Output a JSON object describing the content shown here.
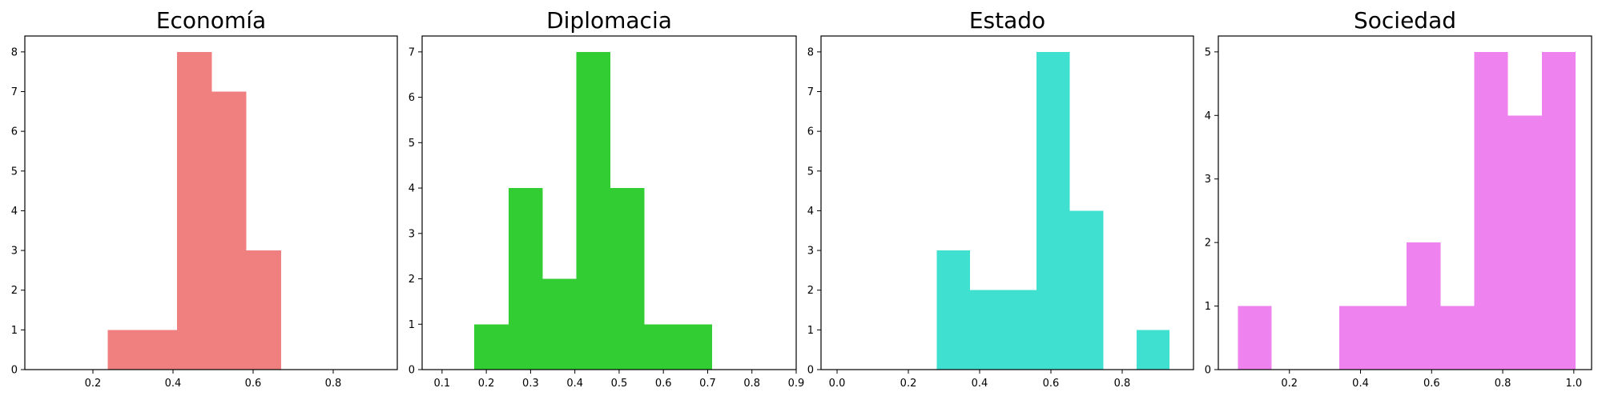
{
  "chart_data": [
    {
      "type": "bar",
      "title": "Economía",
      "xlabel": "",
      "ylabel": "",
      "color": "#f08080",
      "xlim": [
        0.03,
        0.96
      ],
      "ylim": [
        0,
        8.4
      ],
      "xticks": [
        0.2,
        0.4,
        0.6,
        0.8
      ],
      "xtick_labels": [
        "0.2",
        "0.4",
        "0.6",
        "0.8"
      ],
      "yticks": [
        0,
        1,
        2,
        3,
        4,
        5,
        6,
        7,
        8
      ],
      "ytick_labels": [
        "0",
        "1",
        "2",
        "3",
        "4",
        "5",
        "6",
        "7",
        "8"
      ],
      "bins": [
        {
          "x0": 0.237,
          "x1": 0.323,
          "count": 1
        },
        {
          "x0": 0.323,
          "x1": 0.41,
          "count": 1
        },
        {
          "x0": 0.41,
          "x1": 0.497,
          "count": 8
        },
        {
          "x0": 0.497,
          "x1": 0.583,
          "count": 7
        },
        {
          "x0": 0.583,
          "x1": 0.67,
          "count": 3
        }
      ]
    },
    {
      "type": "bar",
      "title": "Diplomacia",
      "xlabel": "",
      "ylabel": "",
      "color": "#32cd32",
      "xlim": [
        0.055,
        0.9
      ],
      "ylim": [
        0,
        7.35
      ],
      "xticks": [
        0.1,
        0.2,
        0.3,
        0.4,
        0.5,
        0.6,
        0.7,
        0.8,
        0.9
      ],
      "xtick_labels": [
        "0.1",
        "0.2",
        "0.3",
        "0.4",
        "0.5",
        "0.6",
        "0.7",
        "0.8",
        "0.9"
      ],
      "yticks": [
        0,
        1,
        2,
        3,
        4,
        5,
        6,
        7
      ],
      "ytick_labels": [
        "0",
        "1",
        "2",
        "3",
        "4",
        "5",
        "6",
        "7"
      ],
      "bins": [
        {
          "x0": 0.173,
          "x1": 0.25,
          "count": 1
        },
        {
          "x0": 0.25,
          "x1": 0.327,
          "count": 4
        },
        {
          "x0": 0.327,
          "x1": 0.403,
          "count": 2
        },
        {
          "x0": 0.403,
          "x1": 0.48,
          "count": 7
        },
        {
          "x0": 0.48,
          "x1": 0.557,
          "count": 4
        },
        {
          "x0": 0.557,
          "x1": 0.633,
          "count": 1
        },
        {
          "x0": 0.633,
          "x1": 0.71,
          "count": 1
        }
      ]
    },
    {
      "type": "bar",
      "title": "Estado",
      "xlabel": "",
      "ylabel": "",
      "color": "#40e0d0",
      "xlim": [
        -0.045,
        1.0
      ],
      "ylim": [
        0,
        8.4
      ],
      "xticks": [
        0.0,
        0.2,
        0.4,
        0.6,
        0.8
      ],
      "xtick_labels": [
        "0.0",
        "0.2",
        "0.4",
        "0.6",
        "0.8"
      ],
      "yticks": [
        0,
        1,
        2,
        3,
        4,
        5,
        6,
        7,
        8
      ],
      "ytick_labels": [
        "0",
        "1",
        "2",
        "3",
        "4",
        "5",
        "6",
        "7",
        "8"
      ],
      "bins": [
        {
          "x0": 0.28,
          "x1": 0.373,
          "count": 3
        },
        {
          "x0": 0.373,
          "x1": 0.467,
          "count": 2
        },
        {
          "x0": 0.467,
          "x1": 0.56,
          "count": 2
        },
        {
          "x0": 0.56,
          "x1": 0.653,
          "count": 8
        },
        {
          "x0": 0.653,
          "x1": 0.747,
          "count": 4
        },
        {
          "x0": 0.747,
          "x1": 0.84,
          "count": 0
        },
        {
          "x0": 0.84,
          "x1": 0.933,
          "count": 1
        }
      ]
    },
    {
      "type": "bar",
      "title": "Sociedad",
      "xlabel": "",
      "ylabel": "",
      "color": "#ee82ee",
      "xlim": [
        0.0,
        1.05
      ],
      "ylim": [
        0,
        5.25
      ],
      "xticks": [
        0.2,
        0.4,
        0.6,
        0.8,
        1.0
      ],
      "xtick_labels": [
        "0.2",
        "0.4",
        "0.6",
        "0.8",
        "1.0"
      ],
      "yticks": [
        0,
        1,
        2,
        3,
        4,
        5
      ],
      "ytick_labels": [
        "0",
        "1",
        "2",
        "3",
        "4",
        "5"
      ],
      "bins": [
        {
          "x0": 0.055,
          "x1": 0.15,
          "count": 1
        },
        {
          "x0": 0.15,
          "x1": 0.245,
          "count": 0
        },
        {
          "x0": 0.245,
          "x1": 0.34,
          "count": 0
        },
        {
          "x0": 0.34,
          "x1": 0.435,
          "count": 1
        },
        {
          "x0": 0.435,
          "x1": 0.53,
          "count": 1
        },
        {
          "x0": 0.53,
          "x1": 0.625,
          "count": 2
        },
        {
          "x0": 0.625,
          "x1": 0.72,
          "count": 1
        },
        {
          "x0": 0.72,
          "x1": 0.815,
          "count": 5
        },
        {
          "x0": 0.815,
          "x1": 0.91,
          "count": 4
        },
        {
          "x0": 0.91,
          "x1": 1.005,
          "count": 5
        }
      ]
    }
  ]
}
